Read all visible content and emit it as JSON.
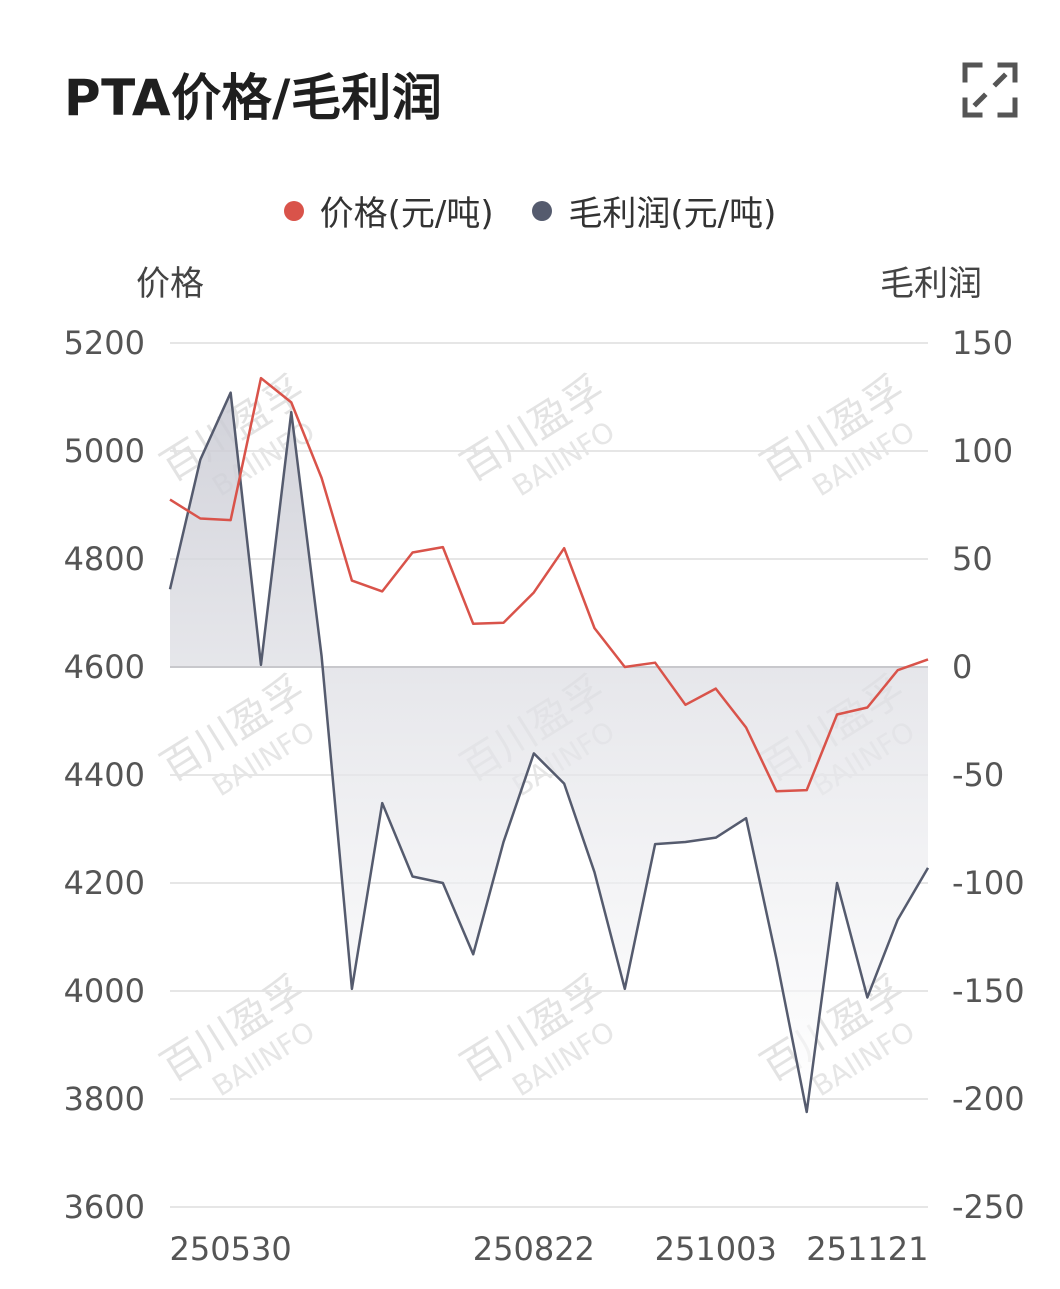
{
  "title": "PTA价格/毛利润",
  "icons": {
    "expand": "expand-icon"
  },
  "watermark": {
    "line1": "百川盈孚",
    "line2": "BAIINFO"
  },
  "chart_data": {
    "type": "line",
    "legend": [
      {
        "name": "价格(元/吨)",
        "color": "#d9534a"
      },
      {
        "name": "毛利润(元/吨)",
        "color": "#555b6e"
      }
    ],
    "y_left_label": "价格",
    "y_right_label": "毛利润",
    "y_left_ticks": [
      "5200",
      "5000",
      "4800",
      "4600",
      "4400",
      "4200",
      "4000",
      "3800",
      "3600"
    ],
    "y_right_ticks": [
      "150",
      "100",
      "50",
      "0",
      "-50",
      "-100",
      "-150",
      "-200",
      "-250"
    ],
    "ylim_left": [
      3600,
      5200
    ],
    "ylim_right": [
      -250,
      150
    ],
    "x_tick_labels": [
      {
        "index": 2,
        "label": "250530"
      },
      {
        "index": 12,
        "label": "250822"
      },
      {
        "index": 18,
        "label": "251003"
      },
      {
        "index": 23,
        "label": "251121"
      }
    ],
    "n_points": 26,
    "series": [
      {
        "name": "价格(元/吨)",
        "axis": "left",
        "color": "#d9534a",
        "values": [
          4910,
          4875,
          4872,
          5135,
          5090,
          4950,
          4760,
          4740,
          4812,
          4822,
          4680,
          4682,
          4738,
          4820,
          4672,
          4600,
          4608,
          4530,
          4560,
          4488,
          4370,
          4372,
          4512,
          4525,
          4594,
          4614
        ]
      },
      {
        "name": "毛利润(元/吨)",
        "axis": "right",
        "color": "#555b6e",
        "fill": true,
        "values": [
          36,
          96,
          127,
          1,
          118,
          5,
          -149,
          -63,
          -97,
          -100,
          -133,
          -81,
          -40,
          -54,
          -95,
          -149,
          -82,
          -81,
          -79,
          -70,
          -135,
          -206,
          -100,
          -153,
          -117,
          -93
        ]
      }
    ]
  }
}
